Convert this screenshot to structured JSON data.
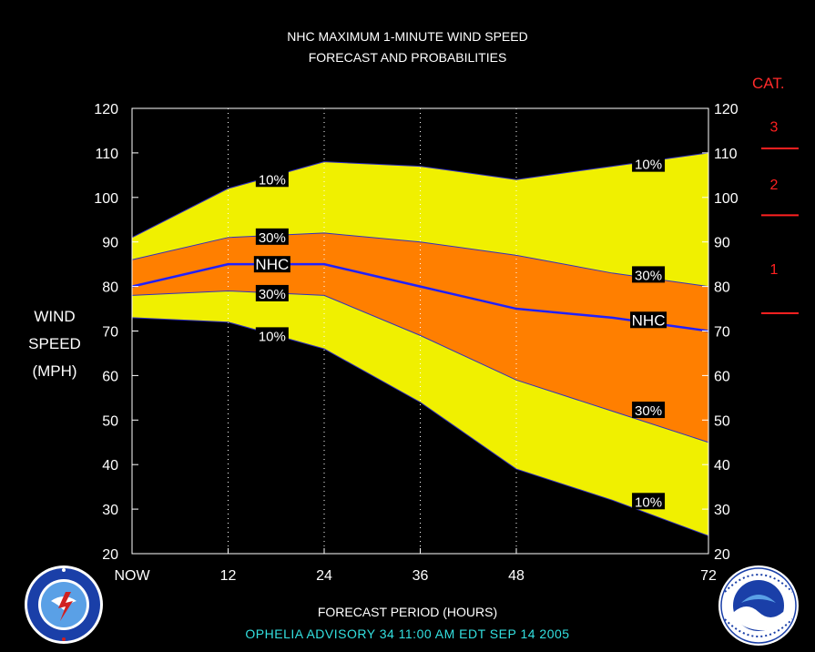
{
  "header": {
    "title_line1": "NHC MAXIMUM 1-MINUTE WIND SPEED",
    "title_line2": "FORECAST AND PROBABILITIES"
  },
  "y_axis_label": [
    "WIND",
    "SPEED",
    "(MPH)"
  ],
  "x_axis_label": "FORECAST PERIOD (HOURS)",
  "advisory_line": "OPHELIA   ADVISORY  34 11:00  AM  EDT  SEP 14  2005",
  "category_scale": {
    "title": "CAT.",
    "color": "#ff2020",
    "labels": [
      {
        "label": "3",
        "value": 116
      },
      {
        "label": "2",
        "value": 103
      },
      {
        "label": "1",
        "value": 84
      }
    ],
    "thresholds": [
      111,
      96,
      74
    ]
  },
  "colors": {
    "outer_band": "#f0f000",
    "inner_band": "#ff7f00",
    "nhc_line": "#2020ff",
    "edge_line": "#3030c0",
    "grid": "#ffffff",
    "background": "#000000"
  },
  "chart_data": {
    "type": "area",
    "xlabel": "FORECAST PERIOD (HOURS)",
    "ylabel": "WIND SPEED (MPH)",
    "x": [
      0,
      12,
      24,
      36,
      48,
      60,
      72
    ],
    "x_tick_values": [
      0,
      12,
      24,
      36,
      48,
      72
    ],
    "x_tick_labels": [
      "NOW",
      "12",
      "24",
      "36",
      "48",
      "72"
    ],
    "x_dotted_gridlines": [
      12,
      24,
      36,
      48
    ],
    "ylim": [
      20,
      120
    ],
    "y_ticks": [
      20,
      30,
      40,
      50,
      60,
      70,
      80,
      90,
      100,
      110,
      120
    ],
    "series": [
      {
        "name": "10%",
        "values": [
          91,
          102,
          108,
          107,
          104,
          107,
          110
        ]
      },
      {
        "name": "30%",
        "values": [
          86,
          91,
          92,
          90,
          87,
          83,
          80
        ]
      },
      {
        "name": "NHC",
        "values": [
          80,
          85,
          85,
          80,
          75,
          73,
          70
        ]
      },
      {
        "name": "30%",
        "values": [
          78,
          79,
          78,
          69,
          59,
          52,
          45
        ]
      },
      {
        "name": "10%",
        "values": [
          73,
          72,
          66,
          54,
          39,
          32,
          24
        ]
      }
    ],
    "annotations": [
      {
        "text": "10%",
        "x": 17.5,
        "y": 104.2
      },
      {
        "text": "30%",
        "x": 17.5,
        "y": 91.2
      },
      {
        "text": "NHC",
        "x": 17.5,
        "y": 85
      },
      {
        "text": "30%",
        "x": 17.5,
        "y": 78.5
      },
      {
        "text": "10%",
        "x": 17.5,
        "y": 69
      },
      {
        "text": "10%",
        "x": 64.5,
        "y": 107.6
      },
      {
        "text": "30%",
        "x": 64.5,
        "y": 82.7
      },
      {
        "text": "NHC",
        "x": 64.5,
        "y": 72.5
      },
      {
        "text": "30%",
        "x": 64.5,
        "y": 52.3
      },
      {
        "text": "10%",
        "x": 64.5,
        "y": 31.8
      }
    ]
  }
}
